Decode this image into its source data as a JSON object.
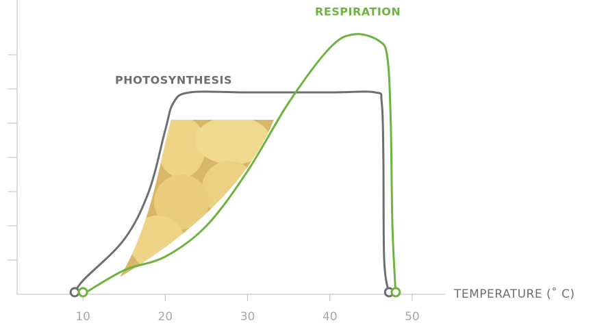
{
  "chart_data": {
    "type": "line",
    "x_label": "TEMPERATURE (˚ C)",
    "xlim": [
      2,
      54
    ],
    "xticks": [
      10,
      20,
      30,
      40,
      50
    ],
    "ylim": [
      0,
      8.5
    ],
    "yticks": [
      1,
      2,
      3,
      4,
      5,
      6,
      7
    ],
    "series": [
      {
        "name": "PHOTOSYNTHESIS",
        "color": "#6d6e70",
        "x": [
          9,
          10,
          15,
          18,
          20,
          21,
          23,
          30,
          40,
          45.5,
          46.3,
          46.5,
          46.6,
          47.2
        ],
        "values": [
          0,
          0.4,
          1.6,
          3.0,
          4.8,
          5.6,
          5.9,
          5.9,
          5.9,
          5.9,
          5.6,
          4,
          1,
          0
        ]
      },
      {
        "name": "RESPIRATION",
        "color": "#6db33f",
        "x": [
          10,
          15,
          20,
          25,
          30,
          35,
          40,
          43,
          46,
          47,
          47.4,
          47.6,
          48
        ],
        "values": [
          0,
          0.7,
          1.1,
          2.0,
          3.6,
          5.6,
          7.2,
          7.6,
          7.4,
          6.9,
          5,
          2,
          0
        ]
      }
    ]
  }
}
